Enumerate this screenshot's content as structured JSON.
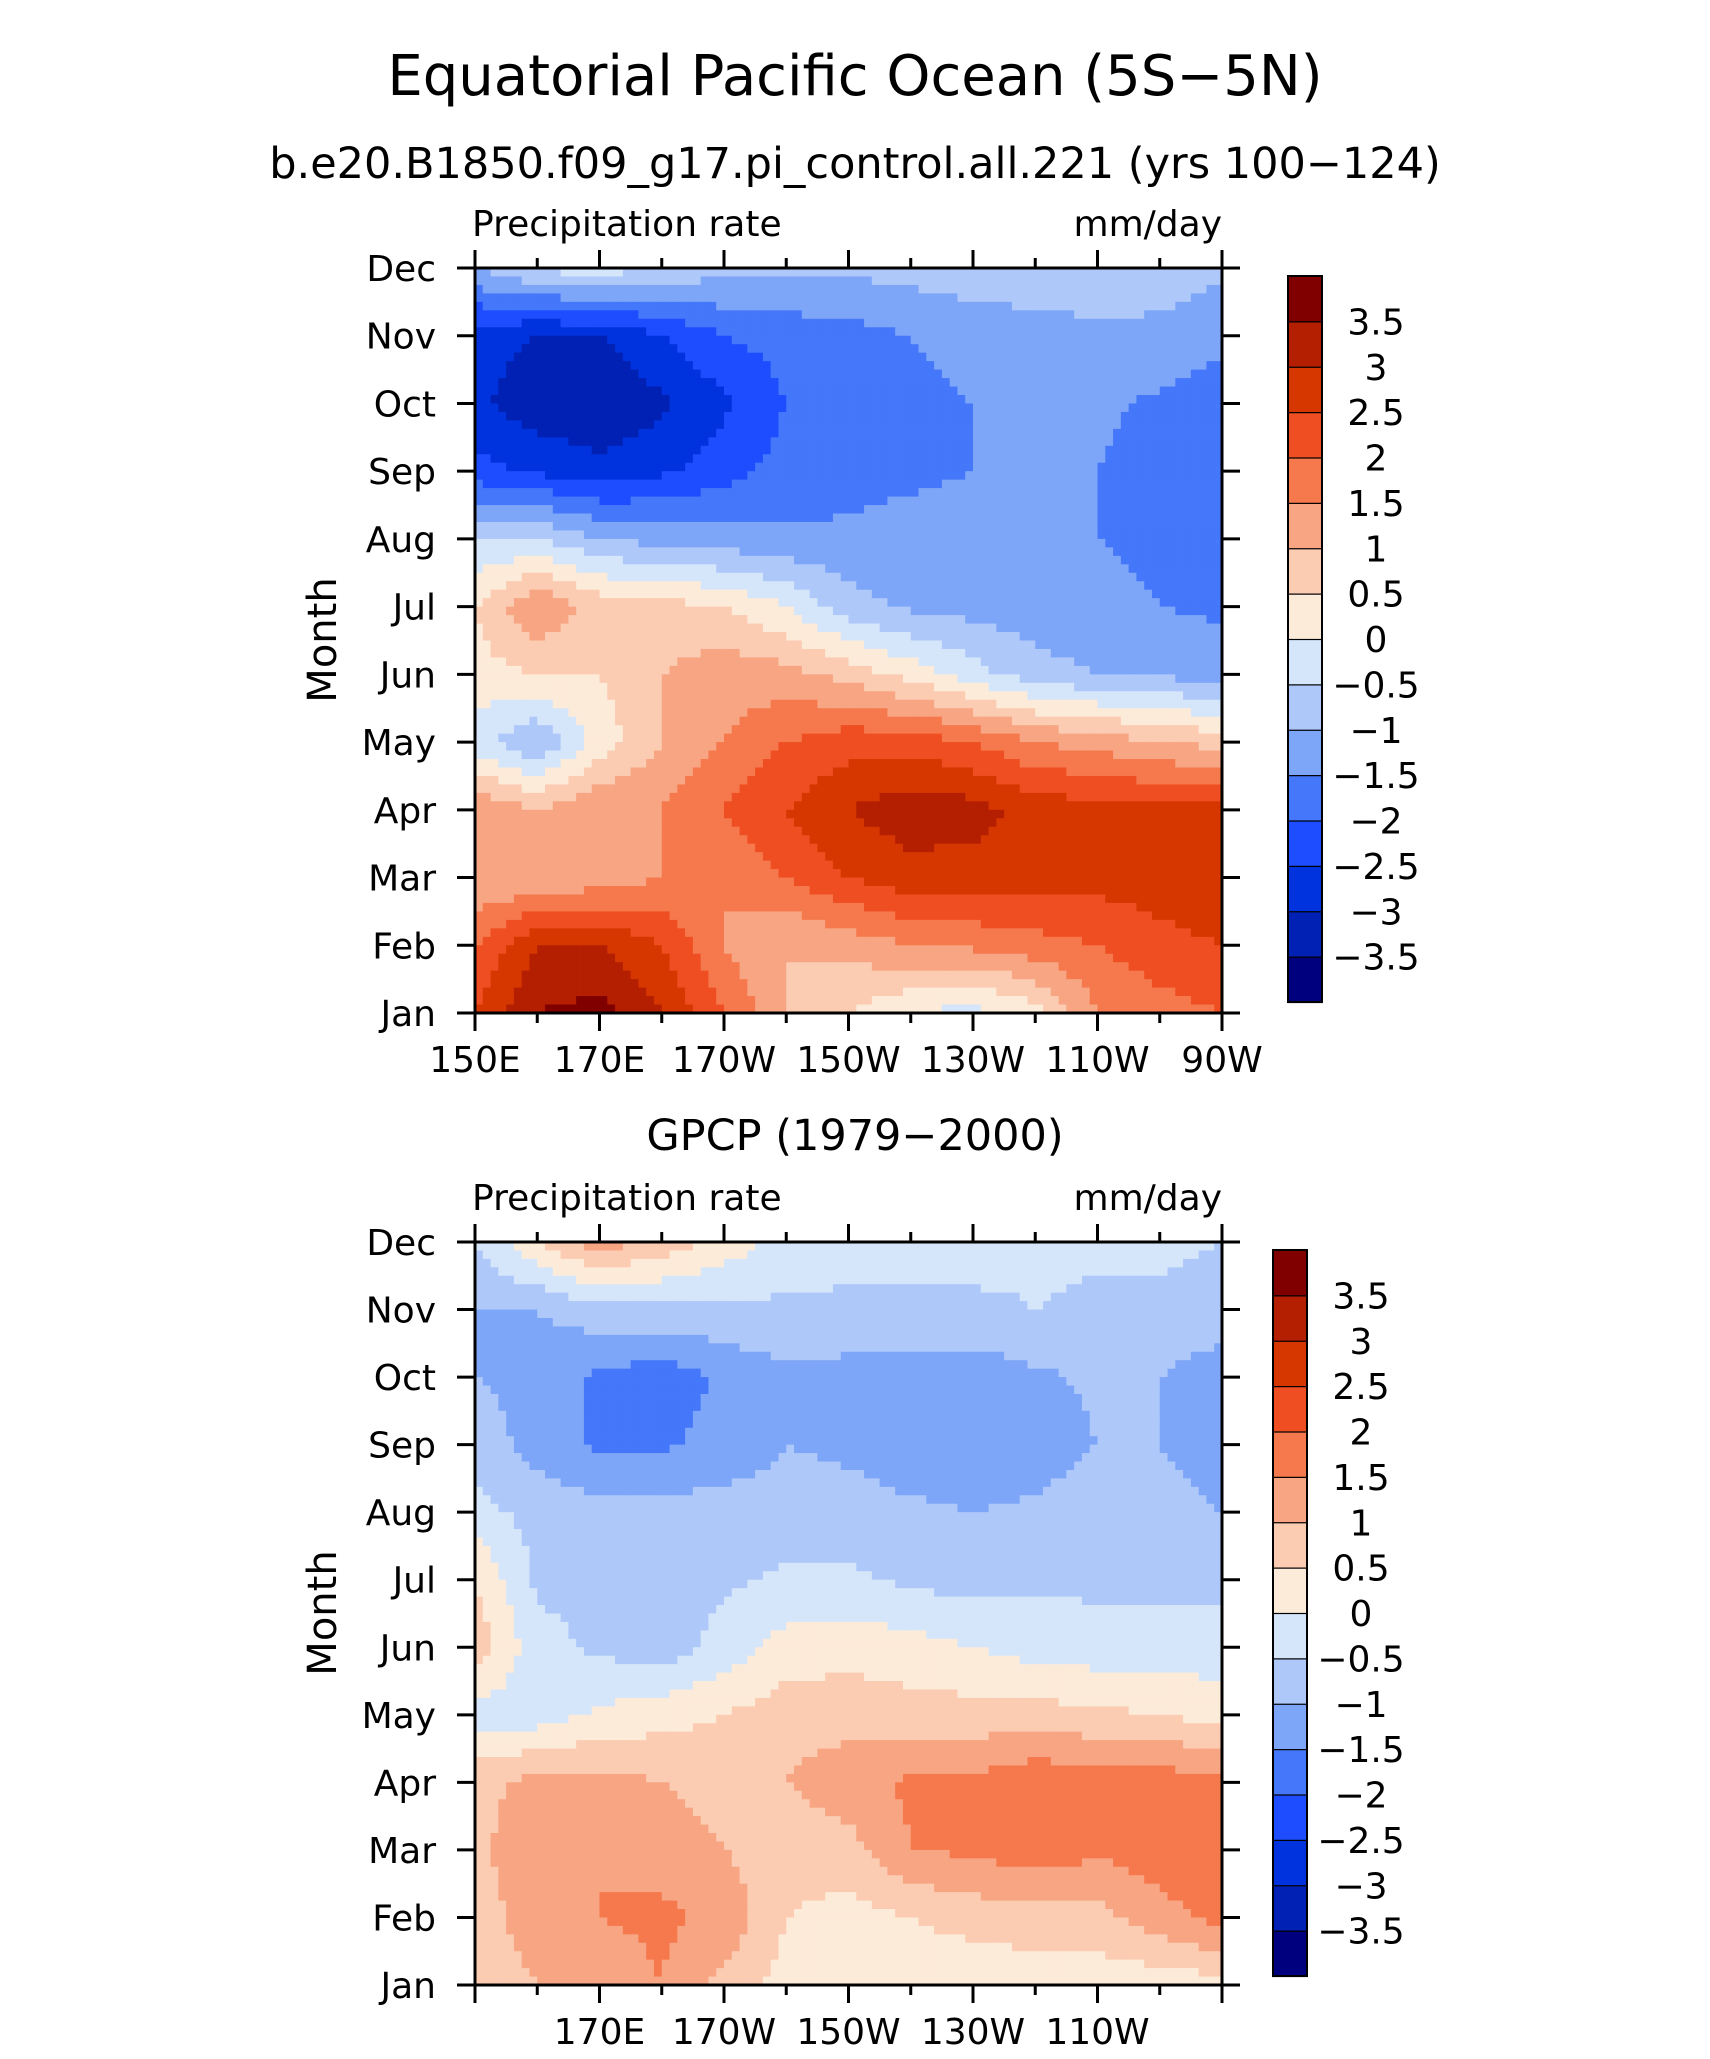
{
  "figure": {
    "title": "Equatorial Pacific Ocean (5S−5N)",
    "subtitle": "b.e20.B1850.f09_g17.pi_control.all.221 (yrs 100−124)",
    "panel2_title": "GPCP (1979−2000)"
  },
  "colors": {
    "levels": [
      "#00007f",
      "#0021b3",
      "#0033dd",
      "#1e4dff",
      "#4577fa",
      "#7ea6f8",
      "#aec8f9",
      "#d6e6fa",
      "#fdebd9",
      "#fbcbb2",
      "#f7a582",
      "#f6794e",
      "#ee4e21",
      "#d63700",
      "#b31f00",
      "#800000"
    ]
  },
  "chart_data": [
    {
      "type": "heatmap",
      "title": "",
      "left_label": "Precipitation rate",
      "right_label": "mm/day",
      "ylabel": "Month",
      "xlabel": "",
      "x_range": [
        150,
        270
      ],
      "x_ticks": [
        150,
        170,
        190,
        210,
        230,
        250,
        270
      ],
      "x_tick_labels": [
        "150E",
        "170E",
        "170W",
        "150W",
        "130W",
        "110W",
        "90W"
      ],
      "y_ticks": [
        "Jan",
        "Feb",
        "Mar",
        "Apr",
        "May",
        "Jun",
        "Jul",
        "Aug",
        "Sep",
        "Oct",
        "Nov",
        "Dec"
      ],
      "colorbar_labels": [
        "3.5",
        "3",
        "2.5",
        "2",
        "1.5",
        "1",
        "0.5",
        "0",
        "−0.5",
        "−1",
        "−1.5",
        "−2",
        "−2.5",
        "−3",
        "−3.5"
      ],
      "x": [
        150,
        160,
        170,
        180,
        190,
        200,
        210,
        220,
        230,
        240,
        250,
        260,
        270
      ],
      "z": [
        [
          2.5,
          3.5,
          3.7,
          3.0,
          2.0,
          1.0,
          0.5,
          0.0,
          -0.2,
          0.3,
          1.5,
          1.8,
          2.0
        ],
        [
          2.0,
          3.0,
          3.0,
          2.5,
          1.5,
          1.0,
          1.2,
          1.5,
          1.6,
          1.8,
          2.0,
          2.3,
          2.5
        ],
        [
          1.0,
          1.0,
          1.2,
          1.5,
          1.5,
          2.0,
          2.5,
          2.8,
          2.8,
          2.8,
          2.7,
          2.8,
          3.0
        ],
        [
          1.5,
          1.0,
          1.5,
          1.5,
          2.0,
          2.5,
          3.0,
          3.3,
          3.2,
          2.8,
          2.7,
          2.7,
          2.8
        ],
        [
          -0.3,
          -1.0,
          0.2,
          1.0,
          1.5,
          2.0,
          2.3,
          2.3,
          2.0,
          1.5,
          1.3,
          1.0,
          0.8
        ],
        [
          0.3,
          0.5,
          0.5,
          1.0,
          1.3,
          1.2,
          0.8,
          0.3,
          -0.3,
          -0.8,
          -1.0,
          -1.1,
          -1.2
        ],
        [
          0.5,
          1.5,
          0.8,
          0.7,
          0.5,
          0.0,
          -0.8,
          -1.1,
          -1.2,
          -1.3,
          -1.4,
          -1.5,
          -1.6
        ],
        [
          -0.5,
          -0.5,
          -1.0,
          -1.2,
          -1.3,
          -1.4,
          -1.4,
          -1.3,
          -1.3,
          -1.4,
          -1.5,
          -1.6,
          -1.9
        ],
        [
          -2.3,
          -2.6,
          -2.8,
          -2.6,
          -2.2,
          -1.8,
          -1.7,
          -1.6,
          -1.5,
          -1.4,
          -1.5,
          -1.7,
          -2.0
        ],
        [
          -2.9,
          -3.3,
          -3.5,
          -3.1,
          -2.6,
          -2.0,
          -1.8,
          -1.7,
          -1.5,
          -1.3,
          -1.4,
          -1.6,
          -1.9
        ],
        [
          -2.8,
          -3.0,
          -3.0,
          -2.5,
          -2.0,
          -1.8,
          -1.7,
          -1.5,
          -1.3,
          -1.2,
          -1.1,
          -1.1,
          -1.3
        ],
        [
          -1.0,
          -0.4,
          -0.2,
          -0.6,
          -0.8,
          -0.9,
          -0.9,
          -0.8,
          -0.7,
          -0.7,
          -0.7,
          -0.8,
          -0.9
        ]
      ]
    },
    {
      "type": "heatmap",
      "title": "GPCP (1979−2000)",
      "left_label": "Precipitation rate",
      "right_label": "mm/day",
      "ylabel": "Month",
      "xlabel": "",
      "x_range": [
        150,
        270
      ],
      "x_ticks": [
        170,
        190,
        210,
        230,
        250
      ],
      "x_tick_labels": [
        "170E",
        "170W",
        "150W",
        "130W",
        "110W"
      ],
      "y_ticks": [
        "Jan",
        "Feb",
        "Mar",
        "Apr",
        "May",
        "Jun",
        "Jul",
        "Aug",
        "Sep",
        "Oct",
        "Nov",
        "Dec"
      ],
      "colorbar_labels": [
        "3.5",
        "3",
        "2.5",
        "2",
        "1.5",
        "1",
        "0.5",
        "0",
        "−0.5",
        "−1",
        "−1.5",
        "−2",
        "−2.5",
        "−3",
        "−3.5"
      ],
      "x": [
        150,
        160,
        170,
        180,
        190,
        200,
        210,
        220,
        230,
        240,
        250,
        260,
        270
      ],
      "z": [
        [
          0.8,
          1.0,
          1.2,
          1.5,
          0.8,
          0.3,
          0.2,
          0.2,
          0.1,
          0.2,
          0.2,
          0.2,
          0.3
        ],
        [
          0.8,
          1.2,
          1.5,
          1.6,
          1.4,
          0.5,
          0.3,
          0.5,
          0.7,
          0.8,
          0.8,
          1.3,
          1.7
        ],
        [
          0.8,
          1.5,
          1.5,
          1.3,
          1.0,
          0.7,
          0.8,
          1.5,
          1.6,
          1.8,
          1.6,
          1.8,
          1.7
        ],
        [
          0.8,
          1.2,
          1.2,
          1.0,
          0.8,
          1.0,
          1.3,
          1.6,
          1.6,
          1.9,
          1.8,
          1.8,
          1.6
        ],
        [
          -0.2,
          -0.3,
          0.1,
          0.3,
          0.5,
          0.8,
          0.8,
          0.7,
          0.7,
          0.7,
          0.6,
          0.5,
          0.3
        ],
        [
          0.8,
          -0.3,
          -0.6,
          -0.8,
          -0.3,
          0.2,
          0.3,
          0.2,
          0.0,
          -0.2,
          -0.3,
          -0.3,
          -0.3
        ],
        [
          0.5,
          -0.6,
          -0.7,
          -0.7,
          -0.6,
          -0.4,
          -0.4,
          -0.6,
          -0.7,
          -0.6,
          -0.6,
          -0.6,
          -0.6
        ],
        [
          -0.3,
          -0.7,
          -0.8,
          -0.8,
          -0.8,
          -0.8,
          -0.8,
          -0.9,
          -1.0,
          -0.9,
          -0.7,
          -0.8,
          -1.0
        ],
        [
          -0.7,
          -1.2,
          -1.6,
          -1.6,
          -1.3,
          -1.0,
          -1.1,
          -1.3,
          -1.3,
          -1.3,
          -1.0,
          -1.0,
          -1.3
        ],
        [
          -1.0,
          -1.2,
          -1.6,
          -1.8,
          -1.4,
          -1.1,
          -1.2,
          -1.3,
          -1.3,
          -1.1,
          -0.9,
          -1.0,
          -1.3
        ],
        [
          -1.0,
          -1.0,
          -0.7,
          -0.6,
          -0.6,
          -0.6,
          -0.6,
          -0.6,
          -0.6,
          -0.5,
          -0.6,
          -0.6,
          -0.7
        ],
        [
          -0.5,
          0.5,
          1.3,
          0.8,
          0.3,
          -0.2,
          -0.3,
          -0.3,
          -0.3,
          -0.4,
          -0.4,
          -0.4,
          -0.5
        ]
      ]
    }
  ]
}
